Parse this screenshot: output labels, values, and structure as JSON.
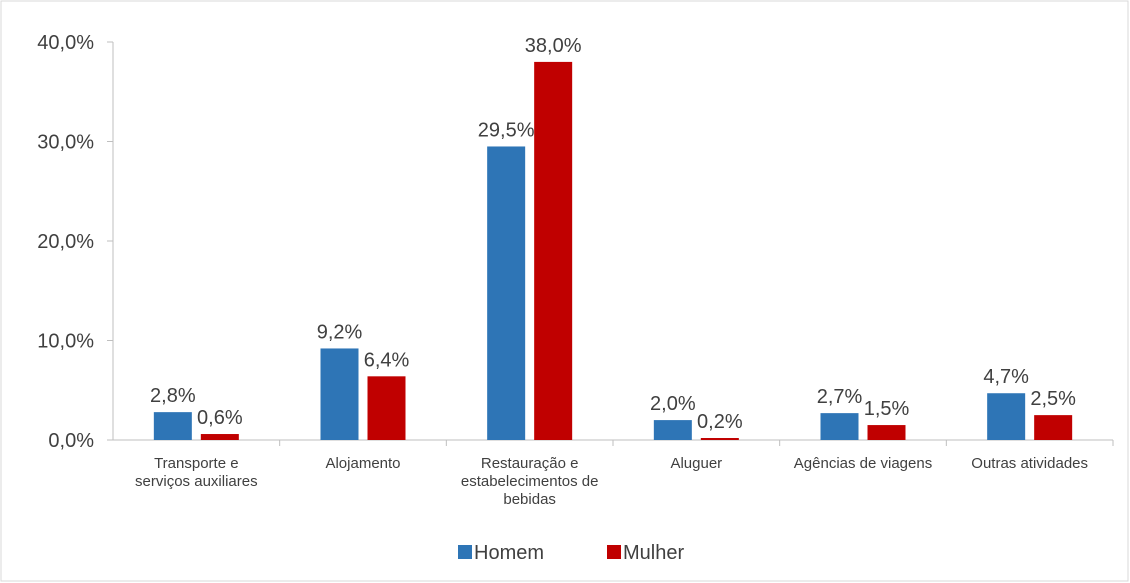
{
  "chart_data": {
    "type": "bar",
    "categories": [
      "Transporte e serviços auxiliares",
      "Alojamento",
      "Restauração e estabelecimentos de bebidas",
      "Aluguer",
      "Agências de viagens",
      "Outras atividades"
    ],
    "series": [
      {
        "name": "Homem",
        "color": "#2e75b6",
        "values": [
          2.8,
          9.2,
          29.5,
          2.0,
          2.7,
          4.7
        ],
        "value_labels": [
          "2,8%",
          "9,2%",
          "29,5%",
          "2,0%",
          "2,7%",
          "4,7%"
        ]
      },
      {
        "name": "Mulher",
        "color": "#c00000",
        "values": [
          0.6,
          6.4,
          38.0,
          0.2,
          1.5,
          2.5
        ],
        "value_labels": [
          "0,6%",
          "6,4%",
          "38,0%",
          "0,2%",
          "1,5%",
          "2,5%"
        ]
      }
    ],
    "ylim": [
      0,
      40
    ],
    "yticks": [
      {
        "value": 0,
        "label": "0,0%"
      },
      {
        "value": 10,
        "label": "10,0%"
      },
      {
        "value": 20,
        "label": "20,0%"
      },
      {
        "value": 30,
        "label": "30,0%"
      },
      {
        "value": 40,
        "label": "40,0%"
      }
    ],
    "legend": "bottom"
  }
}
